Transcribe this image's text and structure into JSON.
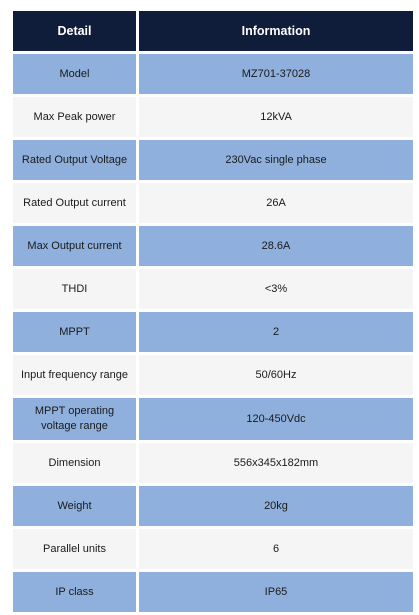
{
  "table": {
    "headers": {
      "detail": "Detail",
      "information": "Information"
    },
    "rows": [
      {
        "detail": "Model",
        "information": "MZ701-37028"
      },
      {
        "detail": "Max Peak power",
        "information": "12kVA"
      },
      {
        "detail": "Rated Output Voltage",
        "information": "230Vac single phase"
      },
      {
        "detail": "Rated Output current",
        "information": "26A"
      },
      {
        "detail": "Max Output current",
        "information": "28.6A"
      },
      {
        "detail": "THDI",
        "information": "<3%"
      },
      {
        "detail": "MPPT",
        "information": "2"
      },
      {
        "detail": "Input frequency range",
        "information": "50/60Hz"
      },
      {
        "detail": "MPPT operating voltage range",
        "information": "120-450Vdc"
      },
      {
        "detail": "Dimension",
        "information": "556x345x182mm"
      },
      {
        "detail": "Weight",
        "information": "20kg"
      },
      {
        "detail": "Parallel units",
        "information": "6"
      },
      {
        "detail": "IP class",
        "information": "IP65"
      }
    ]
  },
  "colors": {
    "header_bg": "#0f1c3a",
    "row_blue": "#8fb0dc",
    "row_white": "#f5f5f5"
  }
}
